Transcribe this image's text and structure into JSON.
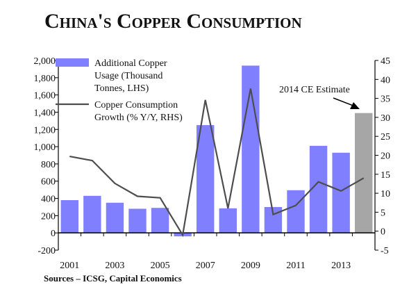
{
  "title": "China's Copper Consumption",
  "source": "Sources – ICSG, Capital Economics",
  "chart_data": {
    "type": "bar",
    "title": "China's Copper Consumption",
    "categories": [
      "2001",
      "2002",
      "2003",
      "2004",
      "2005",
      "2006",
      "2007",
      "2008",
      "2009",
      "2010",
      "2011",
      "2012",
      "2013",
      "2014"
    ],
    "x_tick_labels": [
      "2001",
      "2003",
      "2005",
      "2007",
      "2009",
      "2011",
      "2013"
    ],
    "series": [
      {
        "name": "Additional Copper Usage (Thousand Tonnes, LHS)",
        "type": "bar",
        "axis": "left",
        "values": [
          380,
          430,
          350,
          280,
          290,
          -40,
          1250,
          285,
          1940,
          300,
          495,
          1010,
          930,
          1390
        ],
        "color": "#8080ff",
        "estimate_color": "#a6a6a6",
        "estimate_index": 13
      },
      {
        "name": "Copper Consumption Growth (% Y/Y, RHS)",
        "type": "line",
        "axis": "right",
        "values": [
          19.7,
          18.6,
          12.6,
          9.2,
          8.8,
          -1.0,
          34.6,
          6.0,
          37.6,
          4.4,
          6.8,
          13.0,
          10.6,
          14.0
        ],
        "color": "#4d4d4d"
      }
    ],
    "left_axis": {
      "ylim": [
        -200,
        2000
      ],
      "ticks": [
        "-200",
        "0",
        "200",
        "400",
        "600",
        "800",
        "1,000",
        "1,200",
        "1,400",
        "1,600",
        "1,800",
        "2,000"
      ]
    },
    "right_axis": {
      "ylim": [
        -5,
        45
      ],
      "ticks": [
        "-5",
        "0",
        "5",
        "10",
        "15",
        "20",
        "25",
        "30",
        "35",
        "40",
        "45"
      ]
    },
    "legend": {
      "position": "top-left",
      "labels": [
        [
          "Additional Copper",
          "Usage (Thousand",
          "Tonnes, LHS)"
        ],
        [
          "Copper Consumption",
          "Growth (% Y/Y, RHS)"
        ]
      ]
    },
    "annotation": {
      "text": "2014 CE Estimate"
    },
    "grid": false
  }
}
